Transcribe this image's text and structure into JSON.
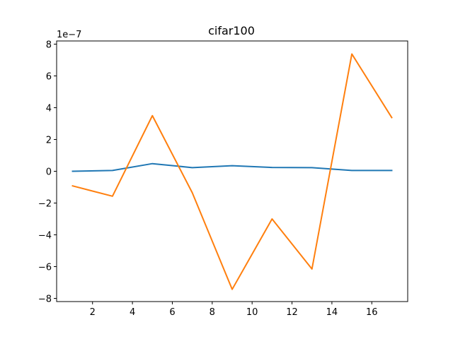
{
  "chart_data": {
    "type": "line",
    "title": "cifar100",
    "xlabel": "",
    "ylabel": "",
    "y_offset_label": "1e−7",
    "xlim": [
      0.2,
      17.8
    ],
    "ylim": [
      -8.2,
      8.2
    ],
    "grid": false,
    "x_ticks": [
      2,
      4,
      6,
      8,
      10,
      12,
      14,
      16
    ],
    "x_tick_labels": [
      "2",
      "4",
      "6",
      "8",
      "10",
      "12",
      "14",
      "16"
    ],
    "y_ticks": [
      -8,
      -6,
      -4,
      -2,
      0,
      2,
      4,
      6,
      8
    ],
    "y_tick_labels": [
      "−8",
      "−6",
      "−4",
      "−2",
      "0",
      "2",
      "4",
      "6",
      "8"
    ],
    "x": [
      1,
      3,
      5,
      7,
      9,
      11,
      13,
      15,
      17
    ],
    "series": [
      {
        "color": "#1f77b4",
        "values": [
          0.0,
          0.05,
          0.48,
          0.23,
          0.35,
          0.24,
          0.23,
          0.05,
          0.05
        ]
      },
      {
        "color": "#ff7f0e",
        "values": [
          -0.92,
          -1.57,
          3.5,
          -1.35,
          -7.43,
          -3.0,
          -6.15,
          7.38,
          3.38
        ]
      }
    ]
  }
}
